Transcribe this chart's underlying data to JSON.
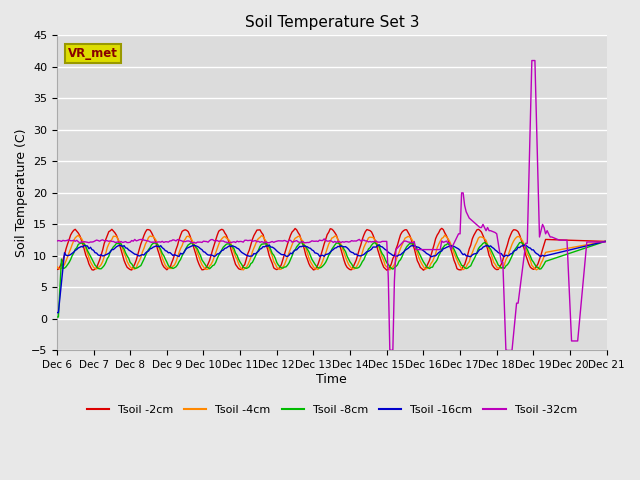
{
  "title": "Soil Temperature Set 3",
  "xlabel": "Time",
  "ylabel": "Soil Temperature (C)",
  "ylim": [
    -5,
    45
  ],
  "yticks": [
    -5,
    0,
    5,
    10,
    15,
    20,
    25,
    30,
    35,
    40,
    45
  ],
  "xlim": [
    0,
    360
  ],
  "bg_color": "#dcdcdc",
  "fig_bg_color": "#e8e8e8",
  "legend_labels": [
    "Tsoil -2cm",
    "Tsoil -4cm",
    "Tsoil -8cm",
    "Tsoil -16cm",
    "Tsoil -32cm"
  ],
  "line_colors": [
    "#dd0000",
    "#ff8800",
    "#00bb00",
    "#0000cc",
    "#bb00bb"
  ],
  "vr_met_box_facecolor": "#dddd00",
  "vr_met_box_edgecolor": "#999900",
  "vr_met_text_color": "#880000",
  "n_points": 360,
  "base_temps": [
    11.0,
    10.5,
    10.0,
    10.8,
    12.3
  ],
  "amplitudes": [
    3.2,
    2.6,
    2.0,
    0.8,
    0.15
  ],
  "period": 24,
  "phase_shifts": [
    6,
    8,
    10,
    12,
    0
  ]
}
